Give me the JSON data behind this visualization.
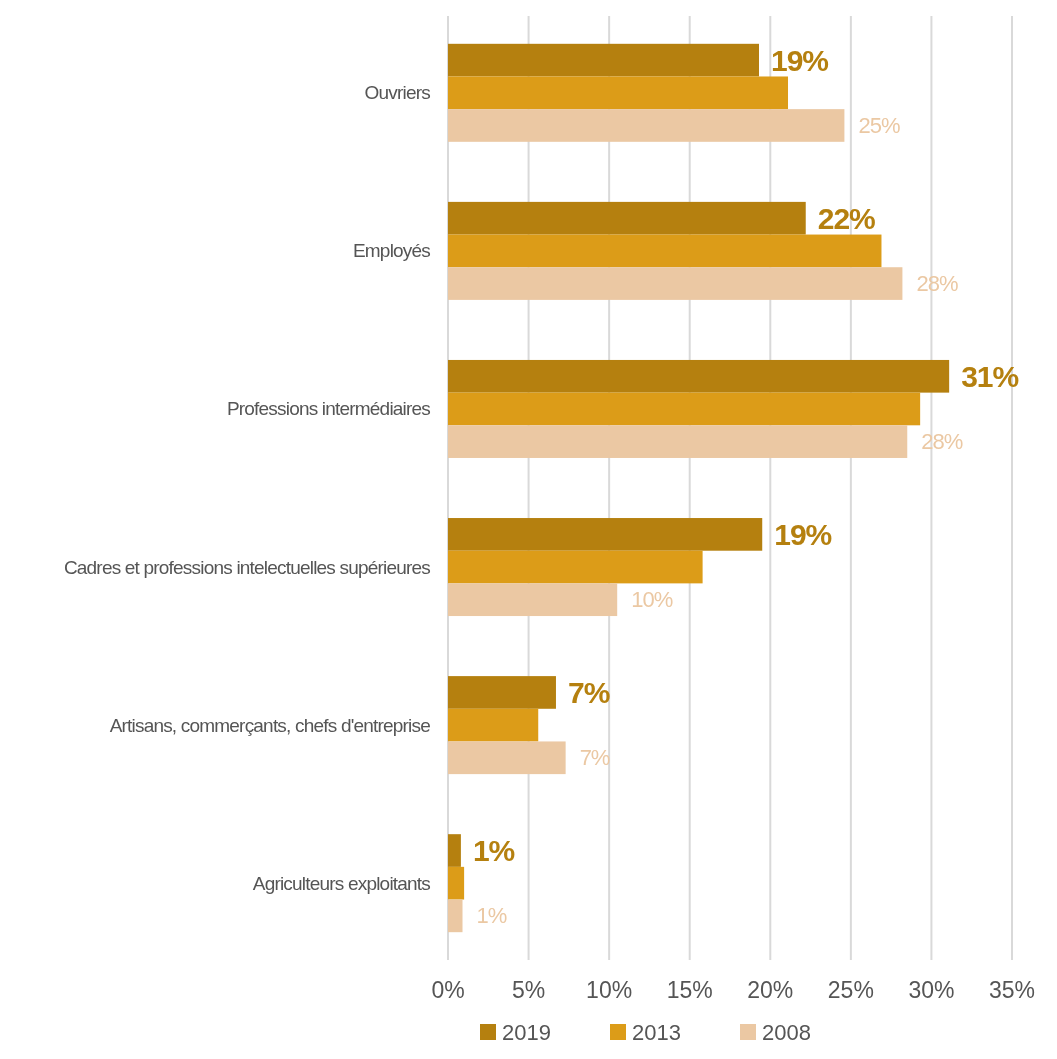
{
  "chart_data": {
    "type": "bar",
    "orientation": "horizontal",
    "categories": [
      "Ouvriers",
      "Employés",
      "Professions intermédiaires",
      "Cadres et professions intelectuelles supérieures",
      "Artisans, commerçants, chefs d'entreprise",
      "Agriculteurs exploitants"
    ],
    "series": [
      {
        "name": "2019",
        "color": "#b5800f",
        "values": [
          19.3,
          22.2,
          31.1,
          19.5,
          6.7,
          0.8
        ],
        "value_labels": [
          "19%",
          "22%",
          "31%",
          "19%",
          "7%",
          "1%"
        ]
      },
      {
        "name": "2013",
        "color": "#dc9c18",
        "values": [
          21.1,
          26.9,
          29.3,
          15.8,
          5.6,
          1.0
        ]
      },
      {
        "name": "2008",
        "color": "#ebc8a3",
        "values": [
          24.6,
          28.2,
          28.5,
          10.5,
          7.3,
          0.9
        ],
        "value_labels": [
          "25%",
          "28%",
          "28%",
          "10%",
          "7%",
          "1%"
        ]
      }
    ],
    "xlim": [
      0,
      35
    ],
    "xticks": [
      {
        "value": 0,
        "label": "0%"
      },
      {
        "value": 5,
        "label": "5%"
      },
      {
        "value": 10,
        "label": "10%"
      },
      {
        "value": 15,
        "label": "15%"
      },
      {
        "value": 20,
        "label": "20%"
      },
      {
        "value": 25,
        "label": "25%"
      },
      {
        "value": 30,
        "label": "30%"
      },
      {
        "value": 35,
        "label": "35%"
      }
    ],
    "grid": "x",
    "legend": "bottom"
  }
}
